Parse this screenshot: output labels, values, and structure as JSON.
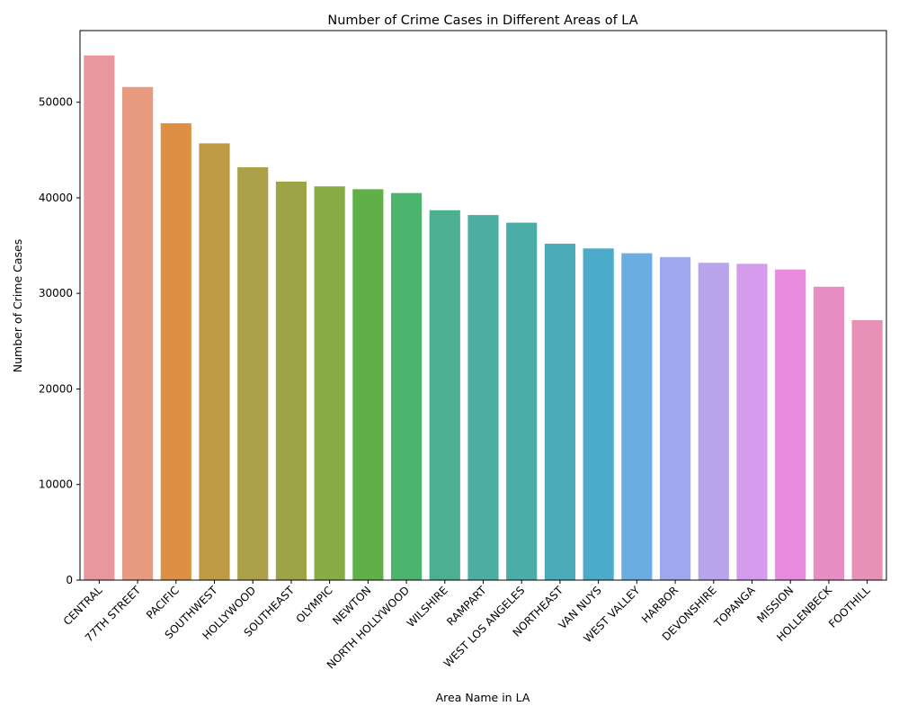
{
  "chart_data": {
    "type": "bar",
    "title": "Number of Crime Cases in Different Areas of LA",
    "xlabel": "Area Name in LA",
    "ylabel": "Number of Crime Cases",
    "ylim": [
      0,
      57500
    ],
    "yticks": [
      "0",
      "10000",
      "20000",
      "30000",
      "40000",
      "50000"
    ],
    "ytick_values": [
      0,
      10000,
      20000,
      30000,
      40000,
      50000
    ],
    "grid": false,
    "legend": "none",
    "categories": [
      "CENTRAL",
      "77TH STREET",
      "PACIFIC",
      "SOUTHWEST",
      "HOLLYWOOD",
      "SOUTHEAST",
      "OLYMPIC",
      "NEWTON",
      "NORTH HOLLYWOOD",
      "WILSHIRE",
      "RAMPART",
      "WEST LOS ANGELES",
      "NORTHEAST",
      "VAN NUYS",
      "WEST VALLEY",
      "HARBOR",
      "DEVONSHIRE",
      "TOPANGA",
      "MISSION",
      "HOLLENBECK",
      "FOOTHILL"
    ],
    "values": [
      54900,
      51600,
      47800,
      45700,
      43200,
      41700,
      41200,
      40900,
      40500,
      38700,
      38200,
      37400,
      35200,
      34700,
      34200,
      33800,
      33200,
      33100,
      32500,
      30700,
      27200
    ],
    "colors": [
      "#ea969d",
      "#e79a7f",
      "#dd9043",
      "#be9a45",
      "#aca048",
      "#9da446",
      "#88ab46",
      "#5fb046",
      "#4bb56e",
      "#4bb092",
      "#4baea0",
      "#4bada8",
      "#4cabb9",
      "#4cabc8",
      "#69ade1",
      "#9da8ed",
      "#b9a5eb",
      "#d59ced",
      "#e88bdf",
      "#e88dc4",
      "#e791b7"
    ]
  }
}
